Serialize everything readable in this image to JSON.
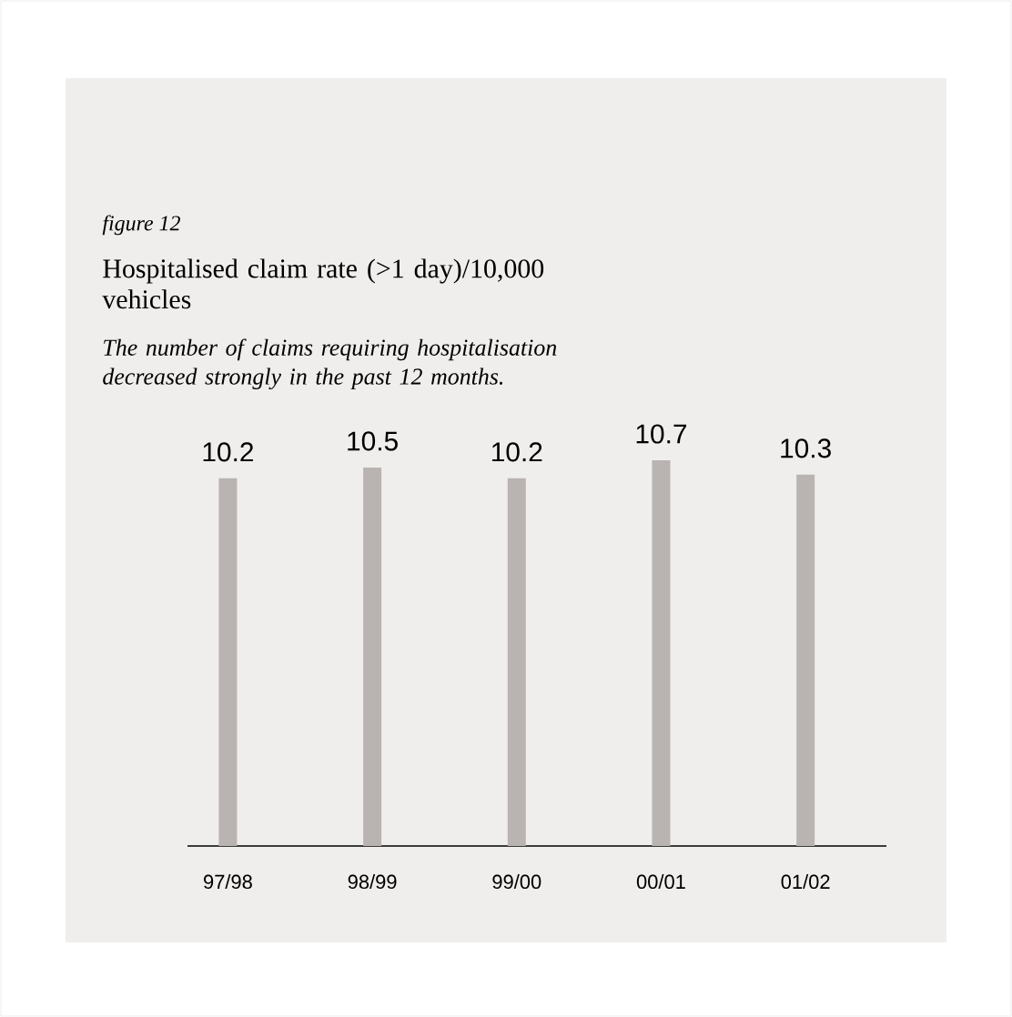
{
  "chart_data": {
    "type": "bar",
    "title": "Hospitalised claim rate (>1 day)/10,000 vehicles",
    "subtitle": "The number of claims requiring hospitalisation decreased strongly in the past 12 months.",
    "annotations": [
      "figure 12"
    ],
    "categories": [
      "97/98",
      "98/99",
      "99/00",
      "00/01",
      "01/02"
    ],
    "values": [
      10.2,
      10.5,
      10.2,
      10.7,
      10.3
    ],
    "color": "#b9b3b1",
    "data_labels": true
  }
}
